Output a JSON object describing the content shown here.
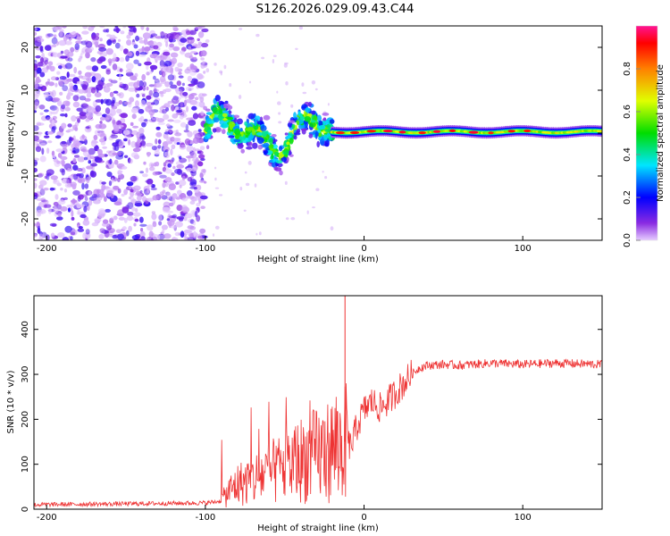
{
  "title": "S126.2026.029.09.43.C44",
  "chart_data": [
    {
      "type": "heatmap",
      "panel": "spectrogram",
      "xlabel": "Height of straight line (km)",
      "ylabel": "Frequency (Hz)",
      "xlim": [
        -208,
        150
      ],
      "ylim": [
        -25,
        25
      ],
      "xticks": [
        -200,
        -100,
        0,
        100
      ],
      "yticks": [
        20,
        10,
        0,
        -10,
        -20
      ],
      "colorbar": {
        "label": "Normalized spectral amplitude",
        "range": [
          0,
          1
        ],
        "ticks": [
          0.0,
          0.2,
          0.4,
          0.6,
          0.8
        ]
      },
      "regions": [
        {
          "x_range": [
            -208,
            -100
          ],
          "freq_range": [
            -25,
            25
          ],
          "amplitude": "low (~0.1-0.25)",
          "description": "broadband noise"
        },
        {
          "x_range": [
            -100,
            -20
          ],
          "freq_range": [
            -8,
            8
          ],
          "amplitude": "0.2-0.7",
          "description": "wandering signal band"
        },
        {
          "x_range": [
            -20,
            150
          ],
          "freq_range": [
            -1,
            1.5
          ],
          "amplitude": "0.4-1.0",
          "description": "stable carrier near 0 Hz"
        }
      ]
    },
    {
      "type": "line",
      "panel": "snr",
      "xlabel": "Height of straight line (km)",
      "ylabel": "SNR (10 * v/v)",
      "xlim": [
        -208,
        150
      ],
      "ylim": [
        0,
        475
      ],
      "xticks": [
        -200,
        -100,
        0,
        100
      ],
      "yticks": [
        0,
        100,
        200,
        300,
        400
      ],
      "color": "#ee3333",
      "series": [
        {
          "name": "SNR",
          "x": [
            -208,
            -150,
            -100,
            -90,
            -85,
            -80,
            -75,
            -70,
            -65,
            -60,
            -55,
            -50,
            -45,
            -40,
            -35,
            -30,
            -25,
            -20,
            -15,
            -12,
            -10,
            -8,
            -5,
            0,
            5,
            10,
            15,
            20,
            25,
            30,
            35,
            40,
            50,
            60,
            80,
            100,
            120,
            150
          ],
          "values": [
            10,
            12,
            14,
            18,
            40,
            55,
            60,
            65,
            75,
            80,
            85,
            95,
            100,
            110,
            115,
            120,
            125,
            135,
            140,
            150,
            145,
            140,
            180,
            220,
            240,
            225,
            240,
            260,
            280,
            300,
            315,
            320,
            322,
            320,
            325,
            322,
            325,
            322
          ]
        }
      ],
      "annotations": [
        {
          "x": -12,
          "y": 475,
          "text": "narrow spike to top of axis"
        }
      ]
    }
  ]
}
